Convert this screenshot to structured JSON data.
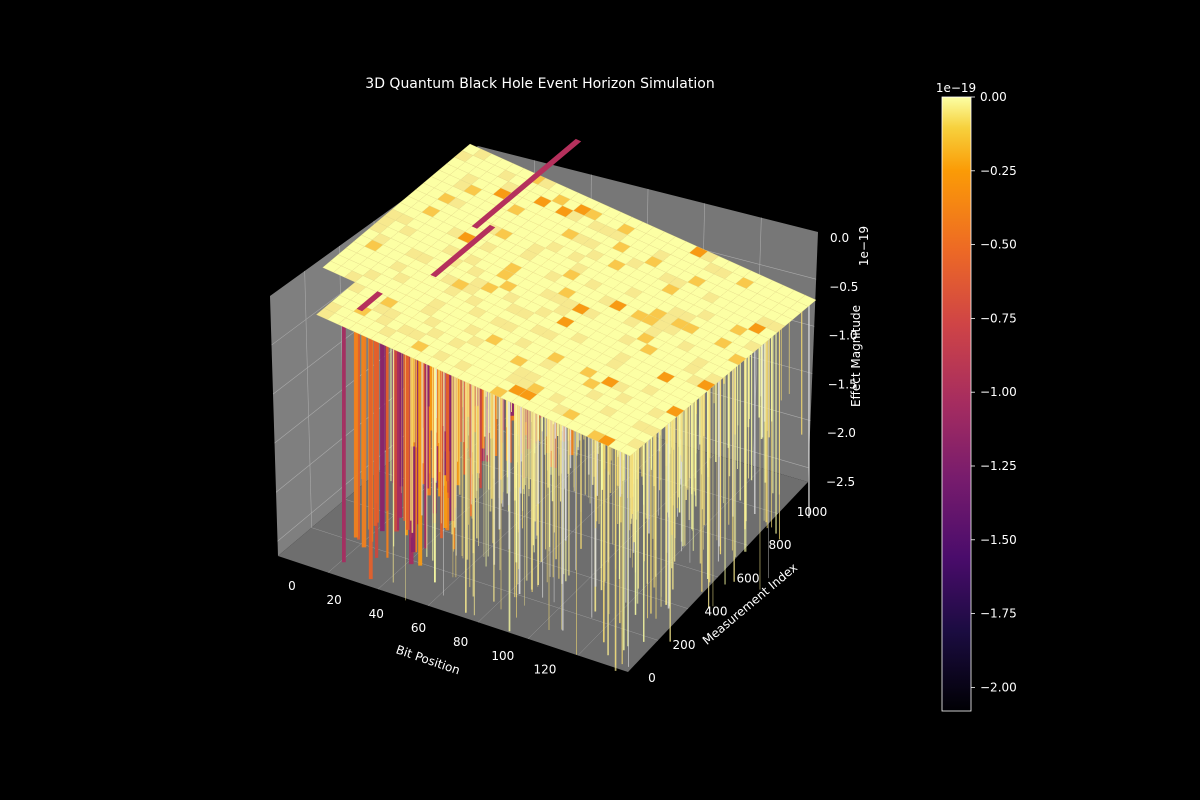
{
  "chart_data": {
    "type": "surface3d",
    "title": "3D Quantum Black Hole Event Horizon Simulation",
    "xlabel": "Bit Position",
    "ylabel": "Measurement Index",
    "zlabel": "Effect Magnitude",
    "z_offset_text": "1e−19",
    "x_ticks": [
      "0",
      "20",
      "40",
      "60",
      "80",
      "100",
      "120"
    ],
    "y_ticks": [
      "0",
      "200",
      "400",
      "600",
      "800",
      "1000"
    ],
    "z_ticks": [
      "0.0",
      "−0.5",
      "−1.0",
      "−1.5",
      "−2.0",
      "−2.5"
    ],
    "xlim": [
      0,
      128
    ],
    "ylim": [
      0,
      1000
    ],
    "zlim": [
      -2.5,
      0.0
    ],
    "colormap": "inferno",
    "background": "#000000",
    "pane_color": "#808080",
    "colorbar": {
      "offset_text": "1e−19",
      "ticks": [
        "0.00",
        "−0.25",
        "−0.50",
        "−0.75",
        "−1.00",
        "−1.25",
        "−1.50",
        "−1.75",
        "−2.00"
      ],
      "range": [
        -2.08,
        0.0
      ]
    }
  }
}
